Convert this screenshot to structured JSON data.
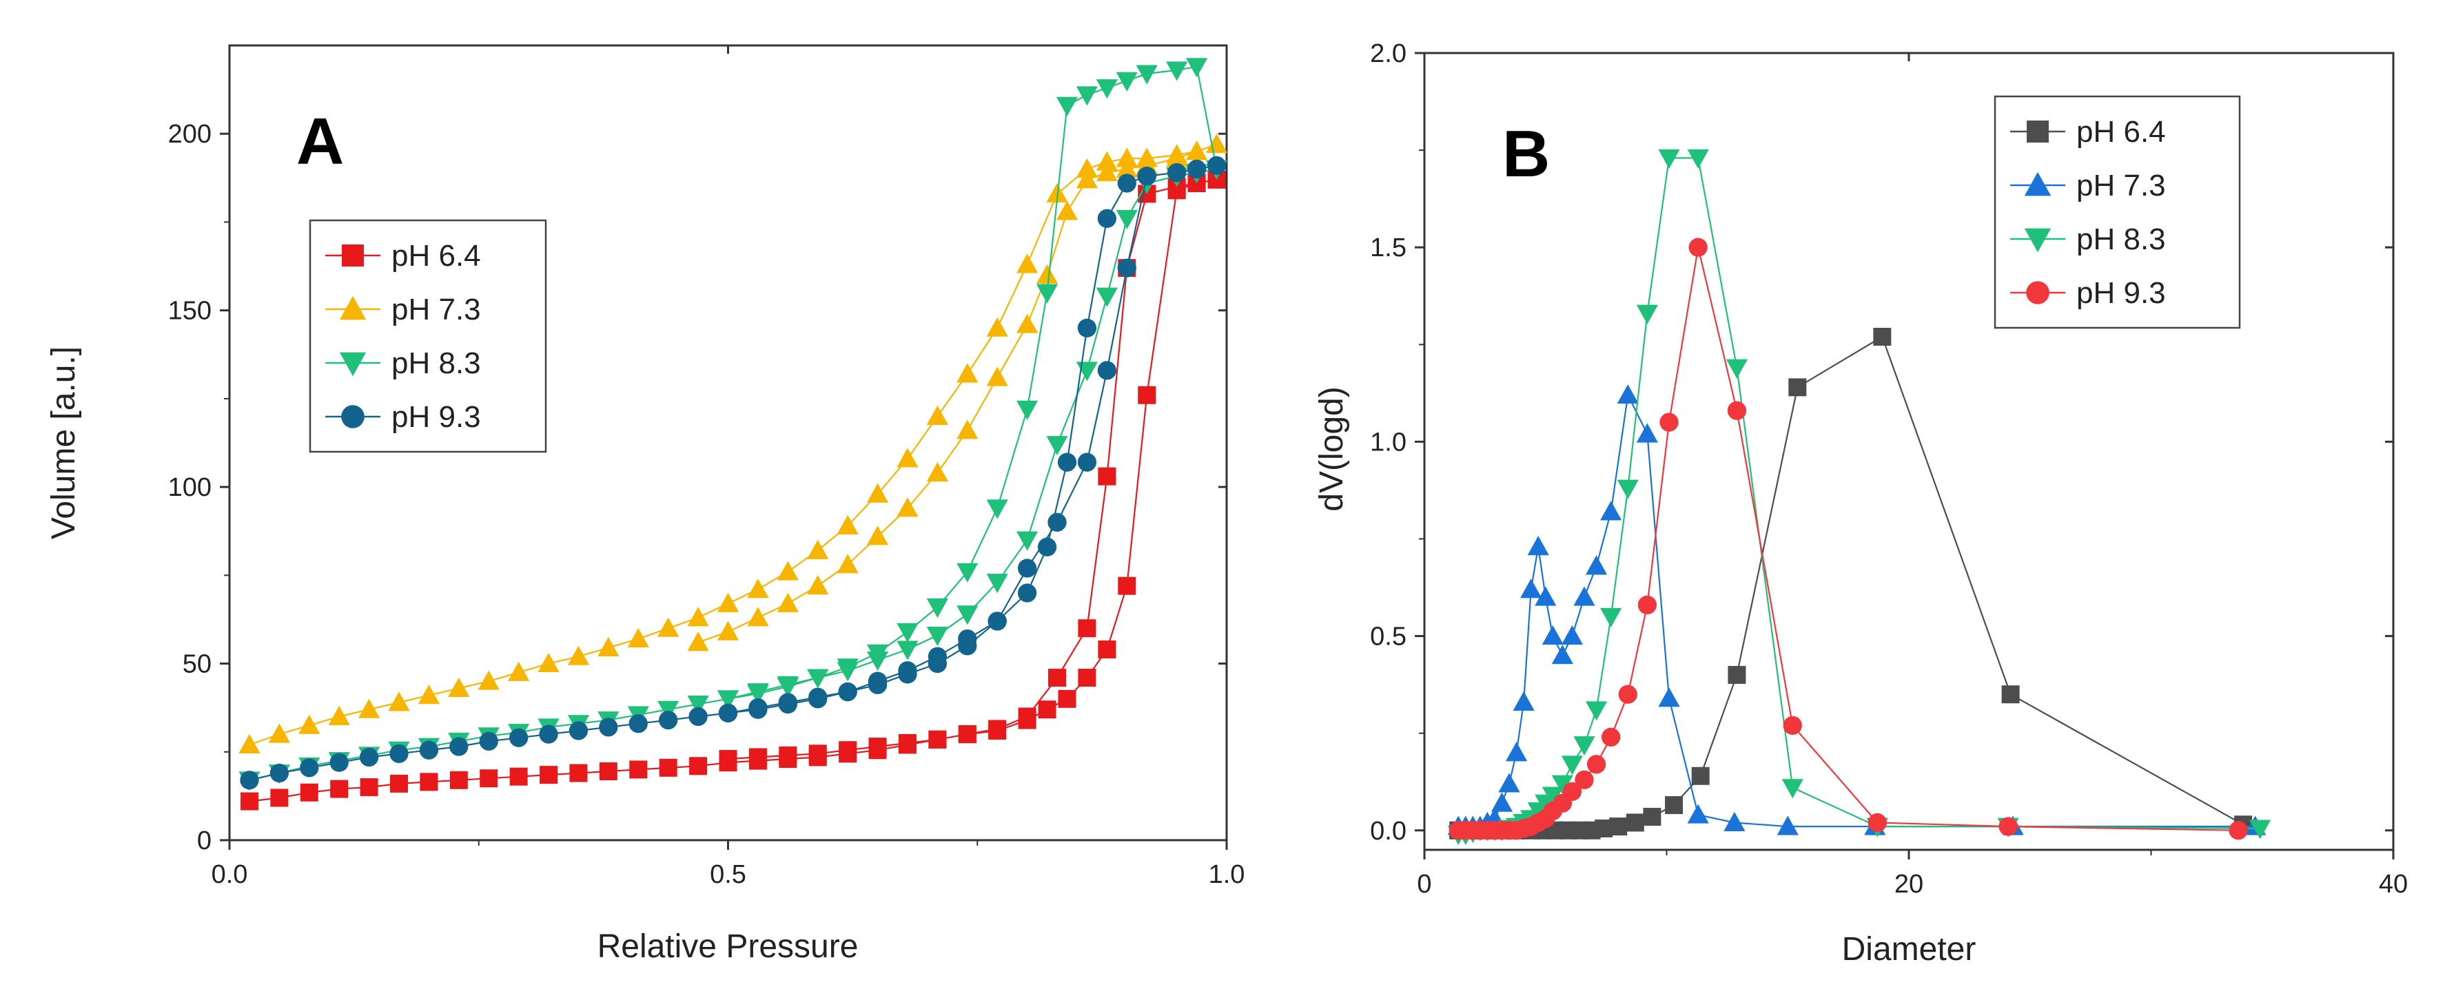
{
  "chart_data": [
    {
      "type": "scatter",
      "panel_label": "A",
      "xlabel": "Relative Pressure",
      "ylabel": "Volume [a.u.]",
      "xlim": [
        0,
        1.0
      ],
      "ylim": [
        0,
        225
      ],
      "xticks": [
        0.0,
        0.5,
        1.0
      ],
      "xtick_labels": [
        "0.0",
        "0.5",
        "1.0"
      ],
      "yticks": [
        0,
        50,
        100,
        150,
        200
      ],
      "ytick_labels": [
        "0",
        "50",
        "100",
        "150",
        "200"
      ],
      "legend_position": "upper-left",
      "series": [
        {
          "name": "pH 6.4",
          "color": "#e8191b",
          "marker": "square",
          "x": [
            0.02,
            0.05,
            0.08,
            0.11,
            0.14,
            0.17,
            0.2,
            0.23,
            0.26,
            0.29,
            0.32,
            0.35,
            0.38,
            0.41,
            0.44,
            0.47,
            0.5,
            0.53,
            0.56,
            0.59,
            0.62,
            0.65,
            0.68,
            0.71,
            0.74,
            0.77,
            0.8,
            0.83,
            0.86,
            0.88,
            0.9,
            0.92,
            0.95,
            0.97,
            0.99,
            0.97,
            0.95,
            0.92,
            0.9,
            0.88,
            0.86,
            0.84,
            0.82,
            0.8,
            0.77,
            0.74,
            0.71,
            0.68,
            0.65,
            0.62,
            0.59,
            0.56,
            0.53,
            0.5
          ],
          "y": [
            11,
            12,
            13.5,
            14.5,
            15,
            16,
            16.5,
            17,
            17.5,
            18,
            18.5,
            19,
            19.5,
            20,
            20.5,
            21,
            22,
            22.5,
            23,
            23.5,
            24.5,
            25.5,
            27,
            28.5,
            30,
            31.5,
            35,
            46,
            60,
            103,
            162,
            183,
            185,
            186,
            187,
            186,
            184,
            126,
            72,
            54,
            46,
            40,
            37,
            34,
            31,
            30,
            28.5,
            27.5,
            26.5,
            25.5,
            24.5,
            24,
            23.5,
            23
          ]
        },
        {
          "name": "pH 7.3",
          "color": "#f7b500",
          "marker": "triangle-up",
          "x": [
            0.02,
            0.05,
            0.08,
            0.11,
            0.14,
            0.17,
            0.2,
            0.23,
            0.26,
            0.29,
            0.32,
            0.35,
            0.38,
            0.41,
            0.44,
            0.47,
            0.5,
            0.53,
            0.56,
            0.59,
            0.62,
            0.65,
            0.68,
            0.71,
            0.74,
            0.77,
            0.8,
            0.83,
            0.86,
            0.88,
            0.9,
            0.92,
            0.95,
            0.97,
            0.99,
            0.97,
            0.95,
            0.92,
            0.9,
            0.88,
            0.86,
            0.84,
            0.82,
            0.8,
            0.77,
            0.74,
            0.71,
            0.68,
            0.65,
            0.62,
            0.59,
            0.56,
            0.53,
            0.5,
            0.47
          ],
          "y": [
            27,
            30,
            32.5,
            35,
            37,
            39,
            41,
            43,
            45,
            47.5,
            50,
            52,
            54.5,
            57,
            60,
            63,
            67,
            71,
            76,
            82,
            89,
            98,
            108,
            120,
            132,
            145,
            163,
            183,
            190,
            192,
            193,
            193,
            194,
            195,
            197,
            195,
            193,
            191,
            190,
            189,
            187,
            178,
            160,
            146,
            131,
            116,
            104,
            94,
            86,
            78,
            72,
            67,
            63,
            59,
            56
          ]
        },
        {
          "name": "pH 8.3",
          "color": "#1fc07a",
          "marker": "triangle-down",
          "x": [
            0.02,
            0.05,
            0.08,
            0.11,
            0.14,
            0.17,
            0.2,
            0.23,
            0.26,
            0.29,
            0.32,
            0.35,
            0.38,
            0.41,
            0.44,
            0.47,
            0.5,
            0.53,
            0.56,
            0.59,
            0.62,
            0.65,
            0.68,
            0.71,
            0.74,
            0.77,
            0.8,
            0.83,
            0.86,
            0.88,
            0.9,
            0.92,
            0.95,
            0.97,
            0.99,
            0.97,
            0.95,
            0.92,
            0.9,
            0.88,
            0.86,
            0.84,
            0.82,
            0.8,
            0.77,
            0.74,
            0.71,
            0.68,
            0.65,
            0.62,
            0.59,
            0.56,
            0.53,
            0.5
          ],
          "y": [
            17,
            19,
            21,
            22.5,
            24,
            25.5,
            26.5,
            28,
            29.5,
            30.5,
            32,
            33,
            34,
            35.5,
            37,
            38.5,
            40,
            42,
            44,
            46,
            48,
            51,
            54,
            58,
            64,
            73,
            85,
            112,
            133,
            154,
            176,
            186,
            188,
            189,
            190,
            219,
            218,
            217,
            215,
            213,
            211,
            208,
            155,
            122,
            94,
            76,
            66,
            59,
            53,
            49,
            46,
            43.5,
            41.5,
            40
          ]
        },
        {
          "name": "pH 9.3",
          "color": "#13638f",
          "marker": "circle",
          "x": [
            0.02,
            0.05,
            0.08,
            0.11,
            0.14,
            0.17,
            0.2,
            0.23,
            0.26,
            0.29,
            0.32,
            0.35,
            0.38,
            0.41,
            0.44,
            0.47,
            0.5,
            0.53,
            0.56,
            0.59,
            0.62,
            0.65,
            0.68,
            0.71,
            0.74,
            0.77,
            0.8,
            0.83,
            0.86,
            0.88,
            0.9,
            0.92,
            0.95,
            0.97,
            0.99,
            0.97,
            0.95,
            0.92,
            0.9,
            0.88,
            0.86,
            0.84,
            0.82,
            0.8,
            0.77,
            0.74,
            0.71,
            0.68,
            0.65,
            0.62,
            0.59,
            0.56,
            0.53,
            0.5
          ],
          "y": [
            17,
            19,
            20.5,
            22,
            23.5,
            24.5,
            25.5,
            26.5,
            28,
            29,
            30,
            31,
            32,
            33,
            34,
            35,
            36,
            37.5,
            39,
            40.5,
            42,
            44,
            47,
            50,
            55,
            62,
            77,
            90,
            107,
            133,
            162,
            188,
            189,
            190,
            191,
            190,
            189,
            188,
            186,
            176,
            145,
            107,
            83,
            70,
            62,
            57,
            52,
            48,
            45,
            42,
            40,
            38.5,
            37,
            36
          ]
        }
      ]
    },
    {
      "type": "line",
      "panel_label": "B",
      "xlabel": "Diameter",
      "ylabel": "dV(logd)",
      "xlim": [
        0,
        40
      ],
      "ylim": [
        -0.05,
        2.0
      ],
      "xticks": [
        0,
        20,
        40
      ],
      "xtick_labels": [
        "0",
        "20",
        "40"
      ],
      "yticks": [
        0.0,
        0.5,
        1.0,
        1.5,
        2.0
      ],
      "ytick_labels": [
        "0.0",
        "0.5",
        "1.0",
        "1.5",
        "2.0"
      ],
      "legend_position": "upper-right",
      "series": [
        {
          "name": "pH 6.4",
          "color": "#4d4d4d",
          "marker": "square",
          "x": [
            1.4,
            1.9,
            2.4,
            2.9,
            3.4,
            3.9,
            4.4,
            4.9,
            5.4,
            5.9,
            6.4,
            6.9,
            7.4,
            8.0,
            8.7,
            9.4,
            10.3,
            11.4,
            12.9,
            15.4,
            18.9,
            24.2,
            33.8
          ],
          "y": [
            0,
            0,
            0,
            0,
            0,
            0,
            0,
            0,
            0,
            0,
            0,
            0,
            0.005,
            0.01,
            0.02,
            0.035,
            0.065,
            0.14,
            0.4,
            1.14,
            1.27,
            0.35,
            0.015
          ]
        },
        {
          "name": "pH 7.3",
          "color": "#1a73d9",
          "marker": "triangle-up",
          "x": [
            1.4,
            1.7,
            2.0,
            2.3,
            2.6,
            2.9,
            3.2,
            3.5,
            3.8,
            4.1,
            4.4,
            4.7,
            5.0,
            5.3,
            5.7,
            6.1,
            6.6,
            7.1,
            7.7,
            8.4,
            9.2,
            10.1,
            11.3,
            12.8,
            15.0,
            18.6,
            24.3,
            34.3
          ],
          "y": [
            0.01,
            0.01,
            0.01,
            0.01,
            0.02,
            0.03,
            0.07,
            0.12,
            0.2,
            0.33,
            0.62,
            0.73,
            0.6,
            0.5,
            0.45,
            0.5,
            0.6,
            0.68,
            0.82,
            1.12,
            1.02,
            0.34,
            0.04,
            0.02,
            0.01,
            0.01,
            0.01,
            0.01
          ]
        },
        {
          "name": "pH 8.3",
          "color": "#1fc07a",
          "marker": "triangle-down",
          "x": [
            1.4,
            1.7,
            2.0,
            2.3,
            2.6,
            2.9,
            3.2,
            3.5,
            3.8,
            4.1,
            4.4,
            4.7,
            5.0,
            5.3,
            5.7,
            6.1,
            6.6,
            7.1,
            7.7,
            8.4,
            9.2,
            10.1,
            11.3,
            12.9,
            15.2,
            18.7,
            24.1,
            34.5
          ],
          "y": [
            -0.01,
            -0.01,
            -0.005,
            0,
            0,
            0,
            0,
            0.005,
            0.01,
            0.02,
            0.03,
            0.05,
            0.07,
            0.09,
            0.12,
            0.17,
            0.22,
            0.31,
            0.55,
            0.88,
            1.33,
            1.73,
            1.73,
            1.19,
            0.11,
            0.01,
            0.01,
            0.005
          ]
        },
        {
          "name": "pH 9.3",
          "color": "#f2373c",
          "marker": "circle",
          "x": [
            1.4,
            1.7,
            2.0,
            2.3,
            2.6,
            2.9,
            3.2,
            3.5,
            3.8,
            4.1,
            4.4,
            4.7,
            5.0,
            5.3,
            5.7,
            6.1,
            6.6,
            7.1,
            7.7,
            8.4,
            9.2,
            10.1,
            11.3,
            12.9,
            15.2,
            18.7,
            24.1,
            33.6
          ],
          "y": [
            0,
            0,
            0,
            0,
            0,
            0,
            0,
            0,
            0,
            0.005,
            0.01,
            0.02,
            0.03,
            0.05,
            0.07,
            0.1,
            0.13,
            0.17,
            0.24,
            0.35,
            0.58,
            1.05,
            1.5,
            1.08,
            0.27,
            0.02,
            0.01,
            0
          ]
        }
      ]
    }
  ]
}
